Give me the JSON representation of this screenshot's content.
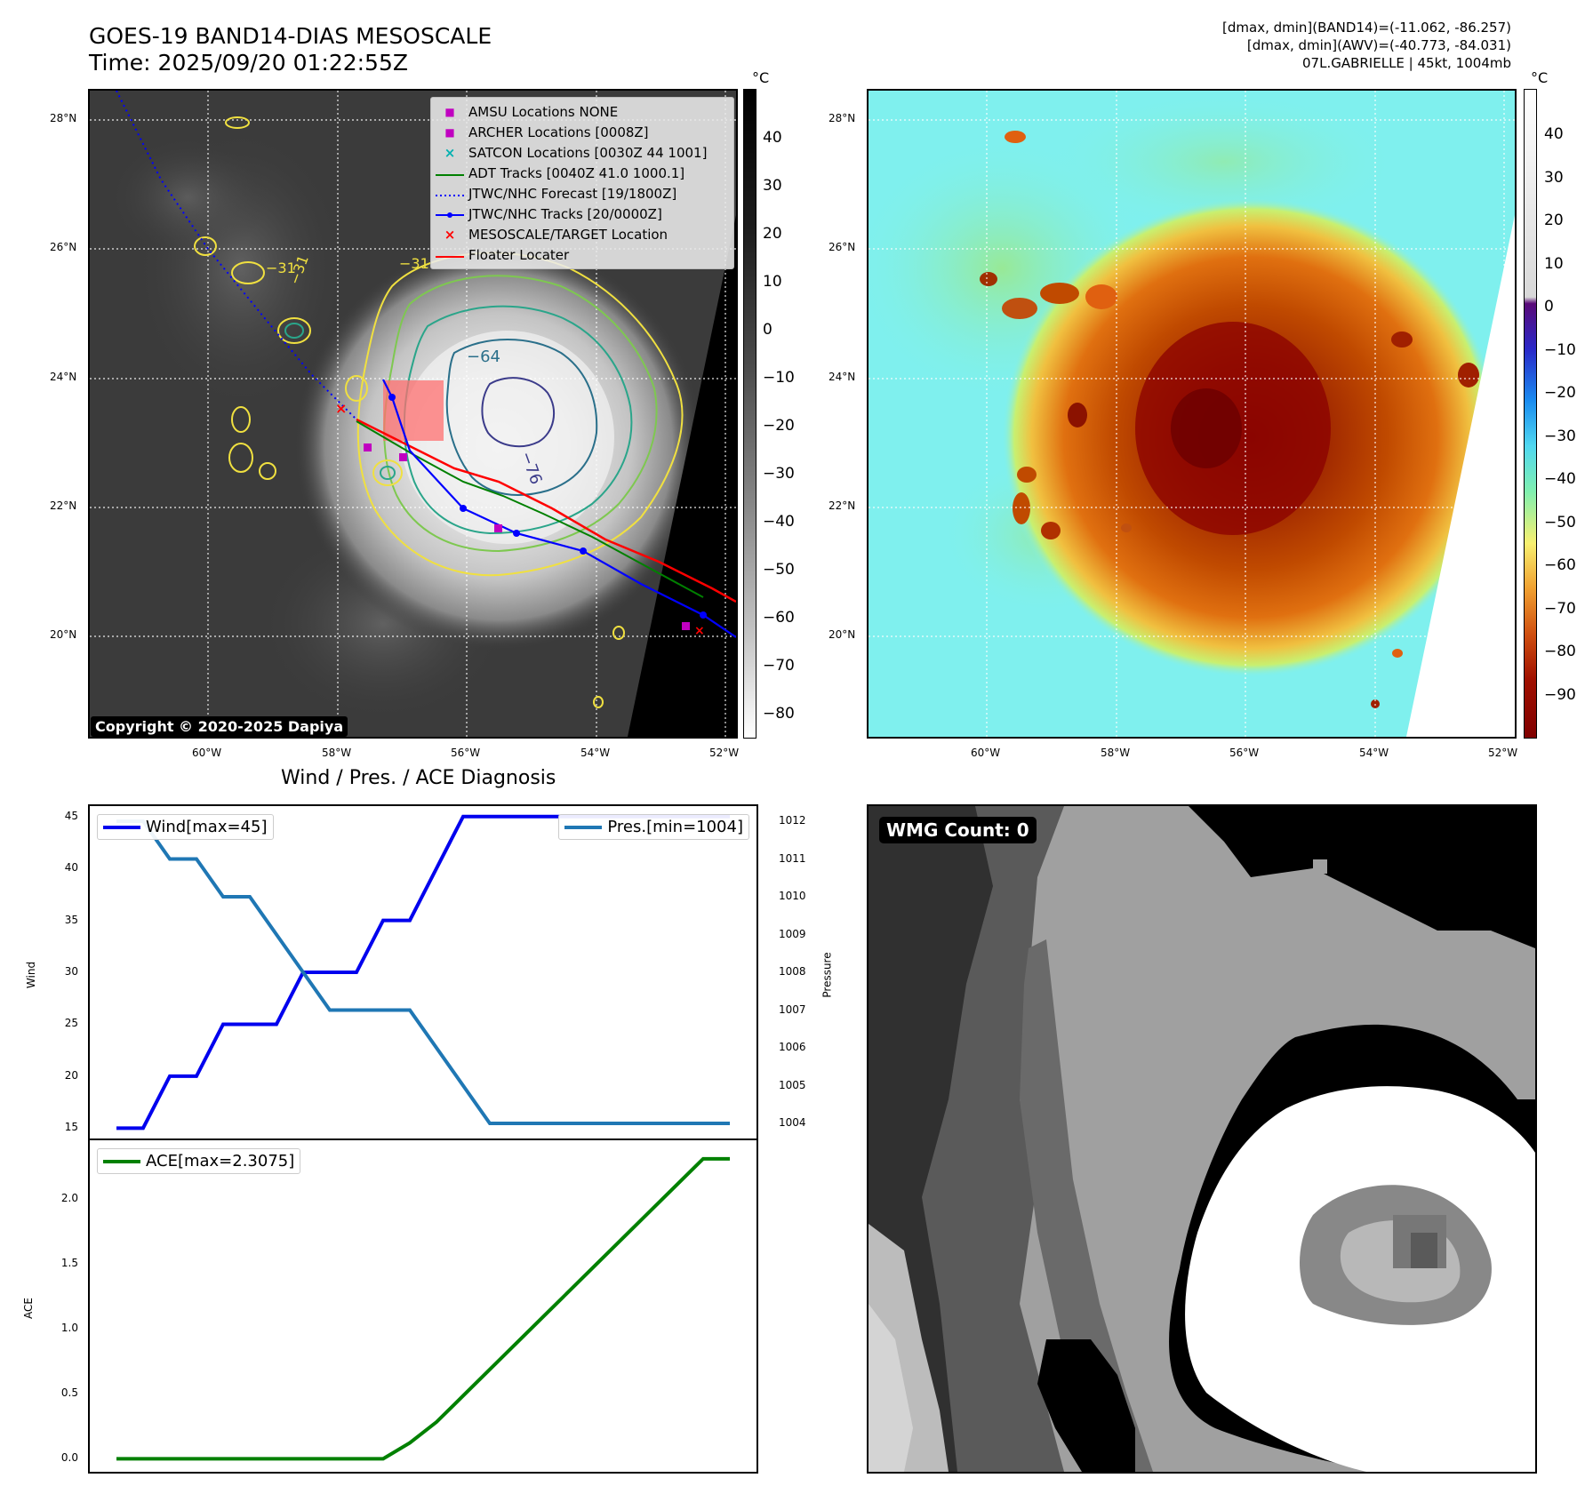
{
  "header": {
    "title_line1": "GOES-19 BAND14-DIAS MESOSCALE",
    "title_line2": "Time: 2025/09/20 01:22:55Z",
    "info_line1": "[dmax, dmin](BAND14)=(-11.062, -86.257)",
    "info_line2": "[dmax, dmin](AWV)=(-40.773, -84.031)",
    "info_line3": "07L.GABRIELLE | 45kt, 1004mb"
  },
  "ir_map": {
    "lat_labels": [
      "28°N",
      "26°N",
      "24°N",
      "22°N",
      "20°N"
    ],
    "lon_labels": [
      "60°W",
      "58°W",
      "56°W",
      "54°W",
      "52°W"
    ],
    "colorbar_unit": "°C",
    "colorbar_ticks": [
      "40",
      "30",
      "20",
      "10",
      "0",
      "−10",
      "−20",
      "−30",
      "−40",
      "−50",
      "−60",
      "−70",
      "−80"
    ],
    "contour_labels": [
      "−31",
      "−31",
      "−31",
      "−64",
      "−76"
    ],
    "copyright": "Copyright © 2020-2025 Dapiya",
    "legend": [
      {
        "marker": "■",
        "color": "#c000c0",
        "label": "AMSU Locations NONE"
      },
      {
        "marker": "■",
        "color": "#c000c0",
        "label": "ARCHER Locations [0008Z]"
      },
      {
        "marker": "×",
        "color": "#00b0b0",
        "label": "SATCON Locations [0030Z 44 1001]"
      },
      {
        "marker": "line",
        "color": "#008000",
        "label": "ADT Tracks [0040Z 41.0 1000.1]"
      },
      {
        "marker": "dotted",
        "color": "#0000ff",
        "label": "JTWC/NHC Forecast [19/1800Z]"
      },
      {
        "marker": "dotline",
        "color": "#0000ff",
        "label": "JTWC/NHC Tracks [20/0000Z]"
      },
      {
        "marker": "×",
        "color": "#ff0000",
        "label": "MESOSCALE/TARGET Location"
      },
      {
        "marker": "line",
        "color": "#ff0000",
        "label": "Floater Locater"
      }
    ]
  },
  "awv_map": {
    "lat_labels": [
      "28°N",
      "26°N",
      "24°N",
      "22°N",
      "20°N"
    ],
    "lon_labels": [
      "60°W",
      "58°W",
      "56°W",
      "54°W",
      "52°W"
    ],
    "colorbar_unit": "°C",
    "colorbar_ticks": [
      "40",
      "30",
      "20",
      "10",
      "0",
      "−10",
      "−20",
      "−30",
      "−40",
      "−50",
      "−60",
      "−70",
      "−80",
      "−90"
    ]
  },
  "diagnosis": {
    "title": "Wind / Pres. / ACE Diagnosis",
    "wind_axis_label": "Wind",
    "pressure_axis_label": "Pressure",
    "ace_axis_label": "ACE",
    "wind_legend": "Wind[max=45]",
    "pres_legend": "Pres.[min=1004]",
    "ace_legend": "ACE[max=2.3075]",
    "wind_color": "#0000ee",
    "pres_color": "#1f77b4",
    "ace_color": "#008000"
  },
  "wmg": {
    "label": "WMG Count: 0"
  },
  "chart_data": [
    {
      "type": "line",
      "title": "Wind / Pres. / ACE Diagnosis",
      "ylabel": "Wind",
      "ylim": [
        14,
        46
      ],
      "yticks": [
        15,
        20,
        25,
        30,
        35,
        40,
        45
      ],
      "x": [
        0,
        1,
        2,
        3,
        4,
        5,
        6,
        7,
        8,
        9,
        10,
        11,
        12,
        13,
        14,
        15,
        16,
        17,
        18,
        19,
        20,
        21,
        22,
        23
      ],
      "series": [
        {
          "name": "Wind[max=45]",
          "values": [
            15,
            15,
            20,
            20,
            25,
            25,
            25,
            30,
            30,
            30,
            35,
            35,
            40,
            45,
            45,
            45,
            45,
            45,
            45,
            45,
            45,
            45,
            45,
            45
          ]
        }
      ]
    },
    {
      "type": "line",
      "ylabel": "Pressure",
      "ylim": [
        1003.6,
        1012.4
      ],
      "yticks": [
        1004,
        1005,
        1006,
        1007,
        1008,
        1009,
        1010,
        1011,
        1012
      ],
      "x": [
        0,
        1,
        2,
        3,
        4,
        5,
        6,
        7,
        8,
        9,
        10,
        11,
        12,
        13,
        14,
        15,
        16,
        17,
        18,
        19,
        20,
        21,
        22,
        23
      ],
      "series": [
        {
          "name": "Pres.[min=1004]",
          "values": [
            1012,
            1012,
            1011,
            1011,
            1010,
            1010,
            1009,
            1008,
            1007,
            1007,
            1007,
            1007,
            1006,
            1005,
            1004,
            1004,
            1004,
            1004,
            1004,
            1004,
            1004,
            1004,
            1004,
            1004
          ]
        }
      ]
    },
    {
      "type": "line",
      "ylabel": "ACE",
      "ylim": [
        -0.1,
        2.45
      ],
      "yticks": [
        0.0,
        0.5,
        1.0,
        1.5,
        2.0
      ],
      "x": [
        0,
        1,
        2,
        3,
        4,
        5,
        6,
        7,
        8,
        9,
        10,
        11,
        12,
        13,
        14,
        15,
        16,
        17,
        18,
        19,
        20,
        21,
        22,
        23
      ],
      "series": [
        {
          "name": "ACE[max=2.3075]",
          "values": [
            0,
            0,
            0,
            0,
            0,
            0,
            0,
            0,
            0,
            0,
            0,
            0.1225,
            0.2825,
            0.485,
            0.6875,
            0.89,
            1.0925,
            1.295,
            1.4975,
            1.7,
            1.9025,
            2.105,
            2.3075,
            2.3075
          ]
        }
      ]
    }
  ]
}
